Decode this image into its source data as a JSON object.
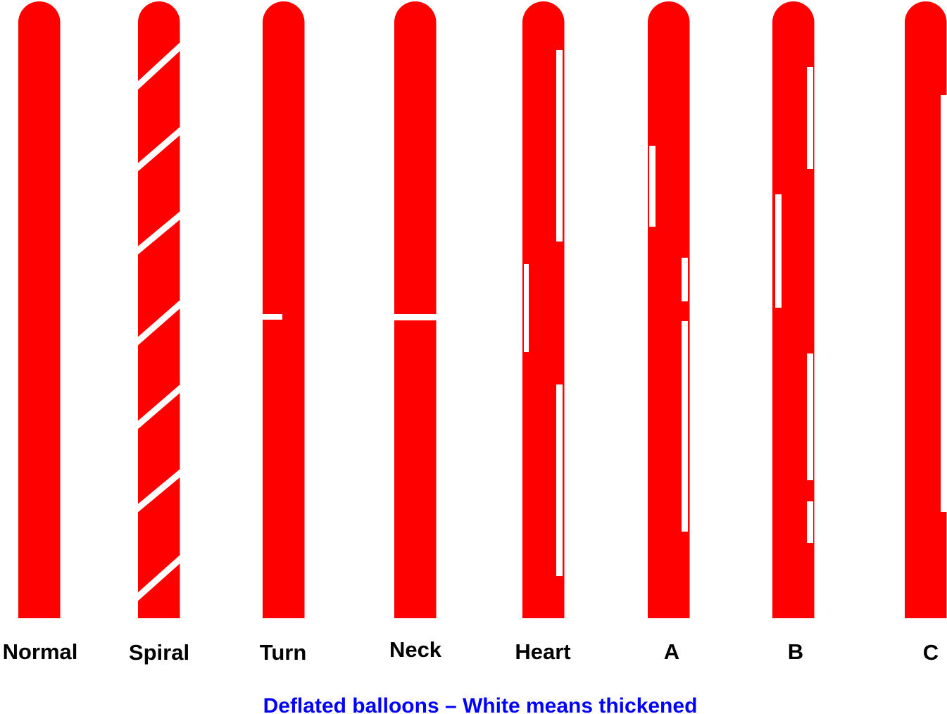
{
  "balloons": [
    {
      "label": "Normal"
    },
    {
      "label": "Spiral"
    },
    {
      "label": "Turn"
    },
    {
      "label": "Neck"
    },
    {
      "label": "Heart"
    },
    {
      "label": "A"
    },
    {
      "label": "B"
    },
    {
      "label": "C"
    }
  ],
  "caption": "Deflated balloons – White means thickened"
}
